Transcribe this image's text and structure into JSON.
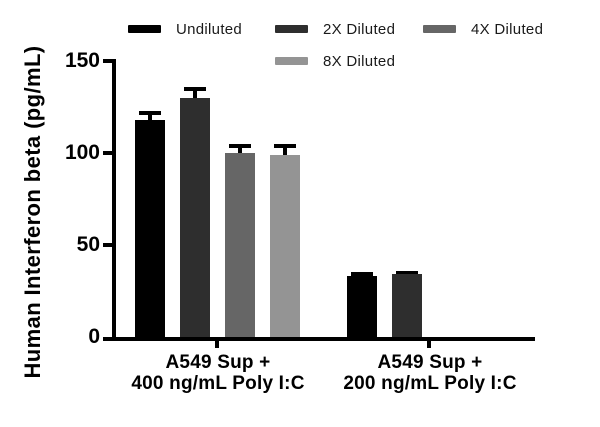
{
  "figure": {
    "background": "#ffffff",
    "text_color": "#000000"
  },
  "legend": {
    "items": [
      {
        "label": "Undiluted",
        "color": "#000000"
      },
      {
        "label": "2X Diluted",
        "color": "#2e2e2e"
      },
      {
        "label": "4X Diluted",
        "color": "#666666"
      },
      {
        "label": "8X Diluted",
        "color": "#949494"
      }
    ]
  },
  "chart_data": {
    "type": "bar",
    "title": "",
    "xlabel": "",
    "ylabel": "Human Interferon beta (pg/mL)",
    "ylim": [
      0,
      150
    ],
    "yticks": [
      0,
      50,
      100,
      150
    ],
    "grid": false,
    "legend_position": "top",
    "error_bars": true,
    "categories": [
      {
        "line1": "A549 Sup +",
        "line2": "400 ng/mL Poly I:C"
      },
      {
        "line1": "A549 Sup +",
        "line2": "200 ng/mL Poly I:C"
      }
    ],
    "series": [
      {
        "name": "Undiluted",
        "color": "#000000",
        "values": [
          118,
          33
        ],
        "errors": [
          4,
          1
        ]
      },
      {
        "name": "2X Diluted",
        "color": "#2e2e2e",
        "values": [
          130,
          34
        ],
        "errors": [
          5,
          1
        ]
      },
      {
        "name": "4X Diluted",
        "color": "#666666",
        "values": [
          100,
          null
        ],
        "errors": [
          4,
          null
        ]
      },
      {
        "name": "8X Diluted",
        "color": "#949494",
        "values": [
          99,
          null
        ],
        "errors": [
          5,
          null
        ]
      }
    ]
  }
}
